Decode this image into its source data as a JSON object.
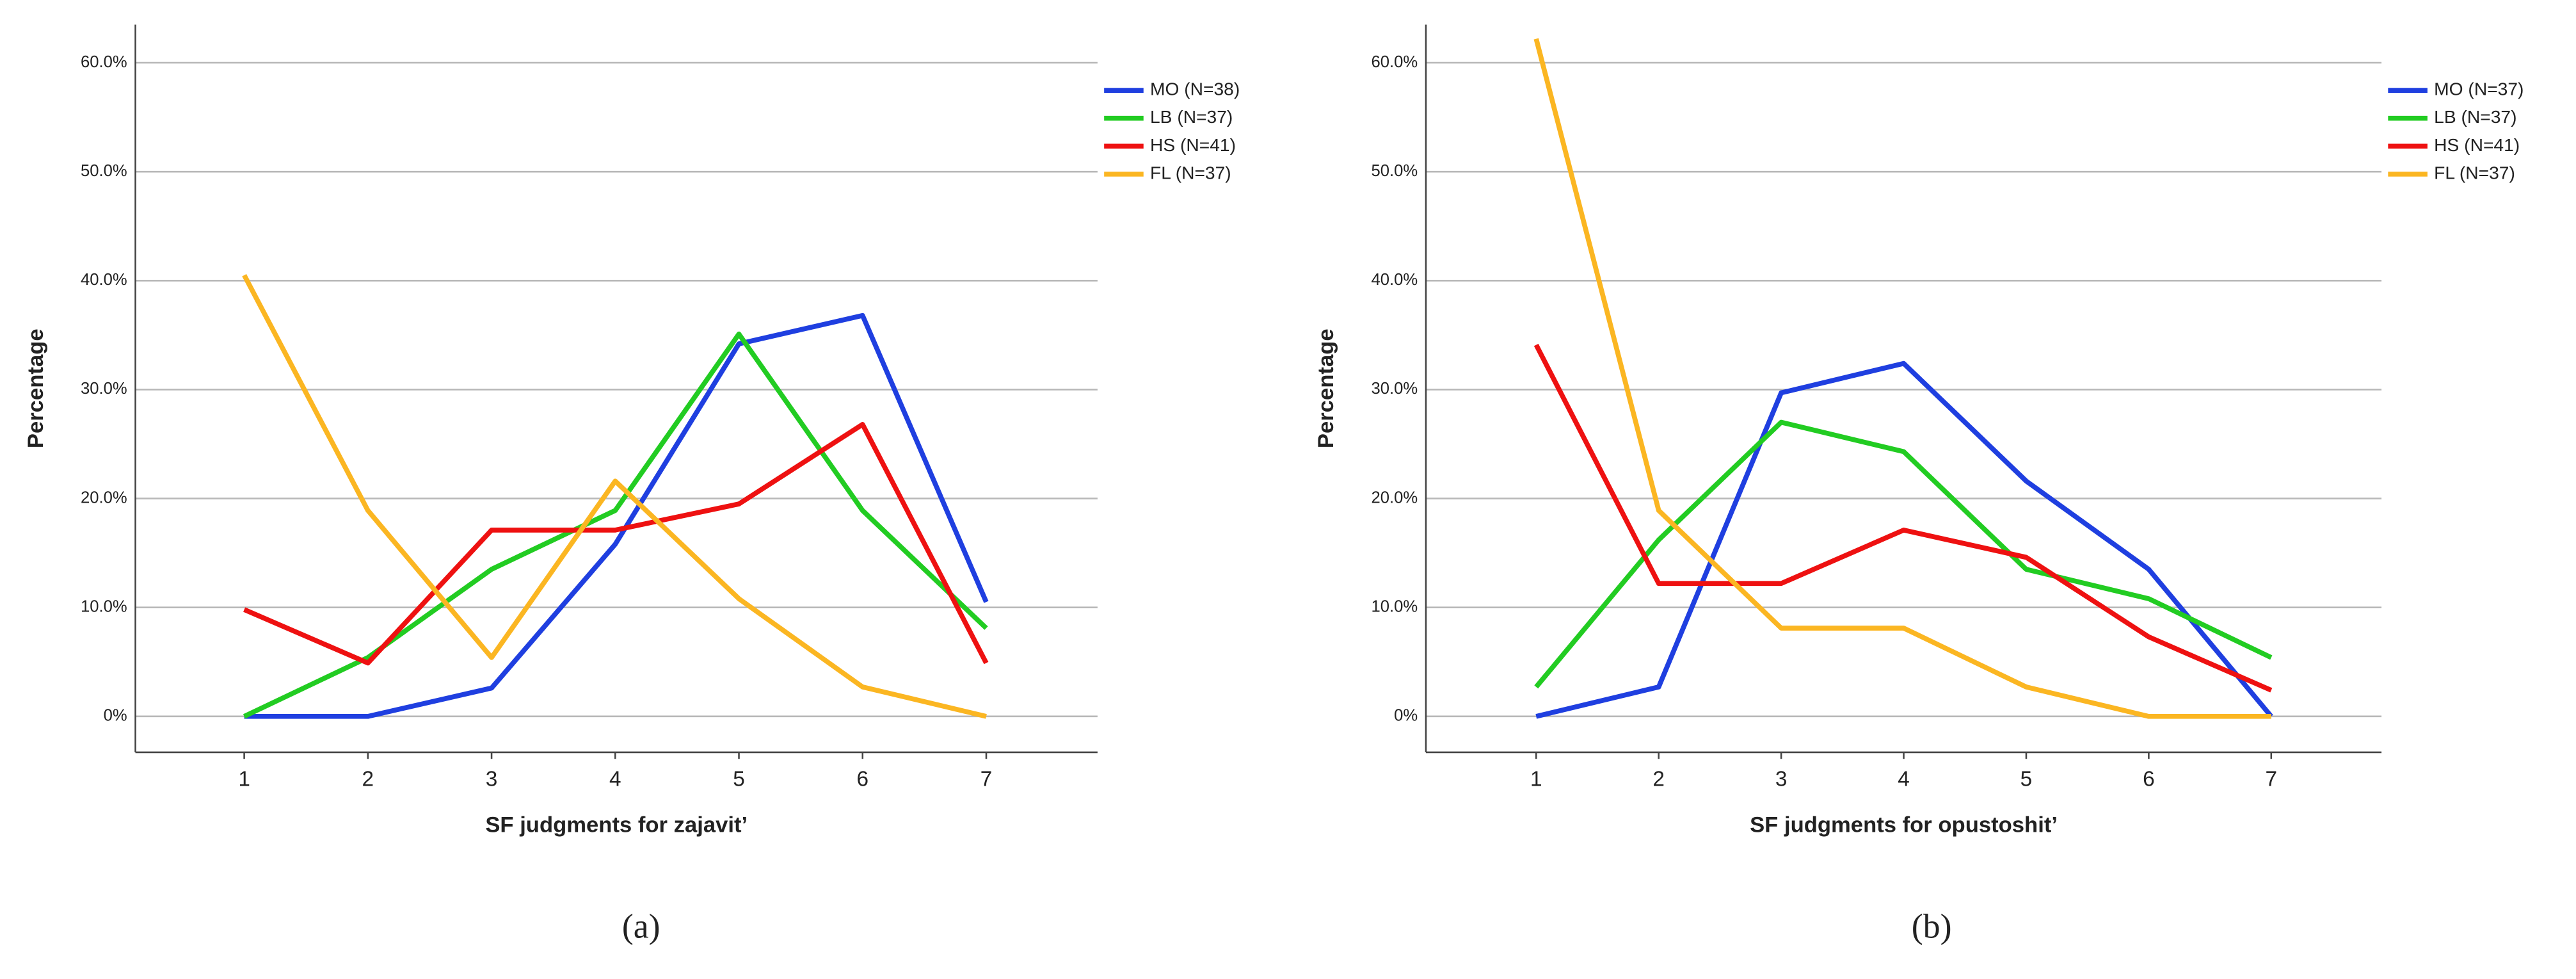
{
  "chart_data": [
    {
      "type": "line",
      "caption": "(a)",
      "x_label": "SF judgments for zajavit’",
      "y_label": "Percentage",
      "x": [
        1,
        2,
        3,
        4,
        5,
        6,
        7
      ],
      "xlim": [
        0.12,
        7.9
      ],
      "xticks": [
        1,
        2,
        3,
        4,
        5,
        6,
        7
      ],
      "ylim": [
        -3.3,
        63.5
      ],
      "yticks": [
        {
          "value": 0,
          "label": "0%"
        },
        {
          "value": 10,
          "label": "10.0%"
        },
        {
          "value": 20,
          "label": "20.0%"
        },
        {
          "value": 30,
          "label": "30.0%"
        },
        {
          "value": 40,
          "label": "40.0%"
        },
        {
          "value": 50,
          "label": "50.0%"
        },
        {
          "value": 60,
          "label": "60.0%"
        }
      ],
      "grid": true,
      "legend": "upper right",
      "series": [
        {
          "name": "MO (N=38)",
          "color": "#1f3fe0",
          "values": [
            0,
            0,
            2.6,
            15.8,
            34.2,
            36.8,
            10.5
          ]
        },
        {
          "name": "LB (N=37)",
          "color": "#22cc22",
          "values": [
            0,
            5.4,
            13.5,
            18.9,
            35.1,
            18.9,
            8.1
          ]
        },
        {
          "name": "HS (N=41)",
          "color": "#ee1111",
          "values": [
            9.8,
            4.9,
            17.1,
            17.1,
            19.5,
            26.8,
            4.9
          ]
        },
        {
          "name": "FL (N=37)",
          "color": "#fbb622",
          "values": [
            40.5,
            18.9,
            5.4,
            21.6,
            10.8,
            2.7,
            0
          ]
        }
      ]
    },
    {
      "type": "line",
      "caption": "(b)",
      "x_label": "SF judgments for opustoshit’",
      "y_label": "Percentage",
      "x": [
        1,
        2,
        3,
        4,
        5,
        6,
        7
      ],
      "xlim": [
        0.1,
        7.9
      ],
      "xticks": [
        1,
        2,
        3,
        4,
        5,
        6,
        7
      ],
      "ylim": [
        -3.3,
        63.5
      ],
      "yticks": [
        {
          "value": 0,
          "label": "0%"
        },
        {
          "value": 10,
          "label": "10.0%"
        },
        {
          "value": 20,
          "label": "20.0%"
        },
        {
          "value": 30,
          "label": "30.0%"
        },
        {
          "value": 40,
          "label": "40.0%"
        },
        {
          "value": 50,
          "label": "50.0%"
        },
        {
          "value": 60,
          "label": "60.0%"
        }
      ],
      "grid": true,
      "legend": "upper right",
      "series": [
        {
          "name": "MO (N=37)",
          "color": "#1f3fe0",
          "values": [
            0,
            2.7,
            29.7,
            32.4,
            21.6,
            13.5,
            0
          ]
        },
        {
          "name": "LB (N=37)",
          "color": "#22cc22",
          "values": [
            2.7,
            16.2,
            27.0,
            24.3,
            13.5,
            10.8,
            5.4
          ]
        },
        {
          "name": "HS (N=41)",
          "color": "#ee1111",
          "values": [
            34.1,
            12.2,
            12.2,
            17.1,
            14.6,
            7.3,
            2.4
          ]
        },
        {
          "name": "FL (N=37)",
          "color": "#fbb622",
          "values": [
            62.2,
            18.9,
            8.1,
            8.1,
            2.7,
            0,
            0
          ]
        }
      ]
    }
  ]
}
